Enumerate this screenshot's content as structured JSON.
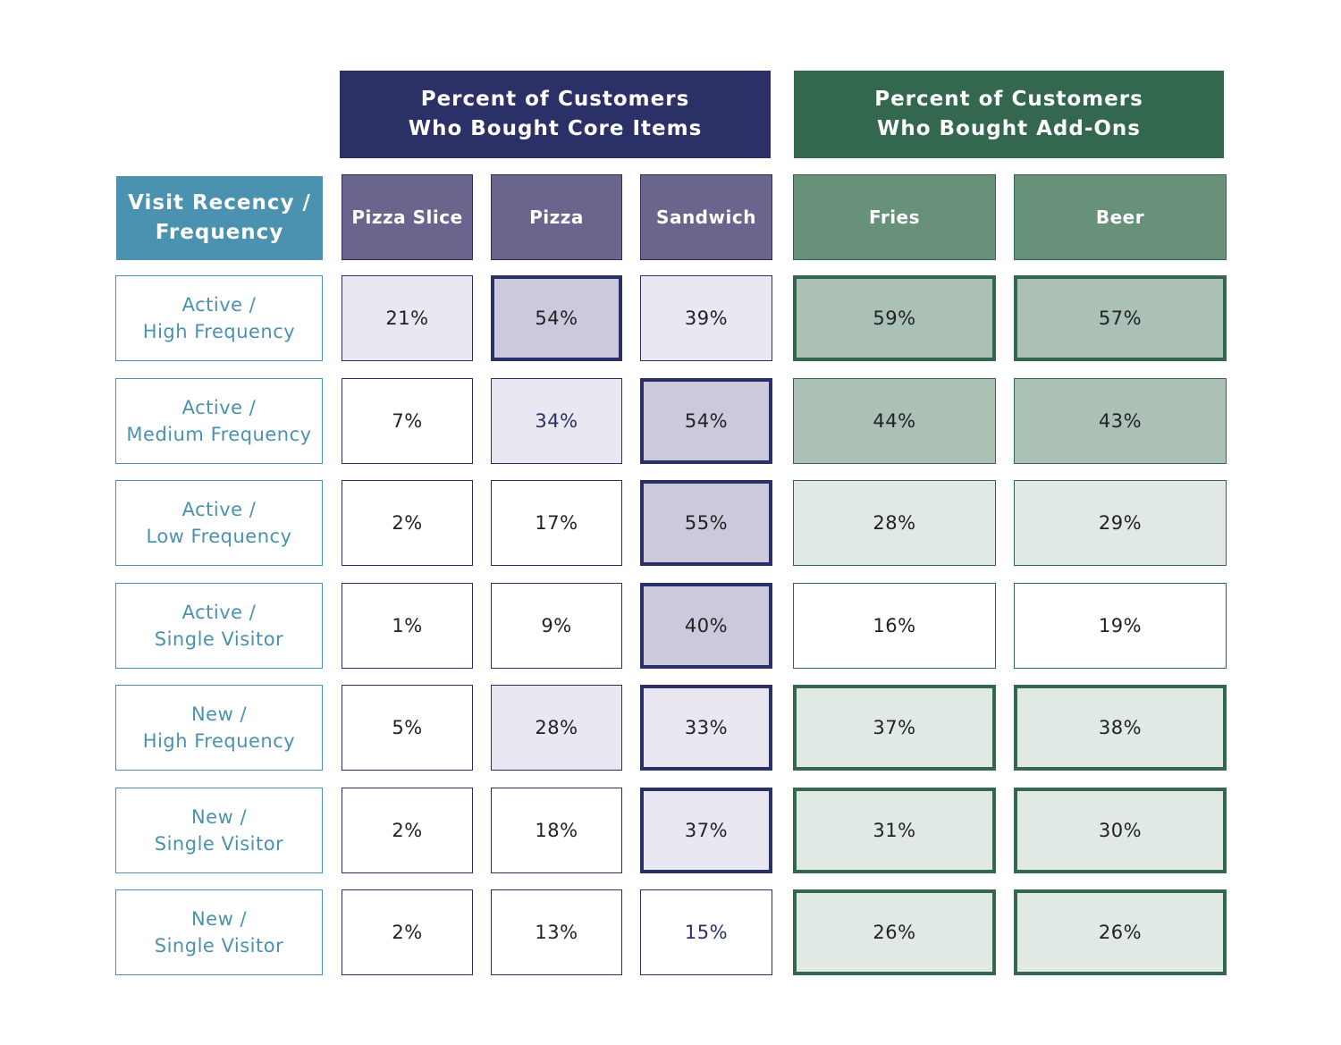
{
  "colors": {
    "core_header": "#2b3066",
    "core_column_header": "#6a658d",
    "addon_header": "#33684f",
    "addon_column_header": "#679179",
    "row_header": "#4a92b0",
    "core_high": "#ccc9dc",
    "core_mid": "#e9e7f2",
    "addon_high": "#abc1b6",
    "addon_mid": "#e1e9e5",
    "highlight_border_core": "#2b3066",
    "highlight_border_addon": "#33684f"
  },
  "groups": [
    {
      "line1": "Percent of Customers",
      "line2": "Who Bought Core Items"
    },
    {
      "line1": "Percent of Customers",
      "line2": "Who Bought Add-Ons"
    }
  ],
  "row_header": {
    "line1": "Visit Recency /",
    "line2": "Frequency"
  },
  "chart_data": {
    "type": "table",
    "columns": [
      "Pizza Slice",
      "Pizza",
      "Sandwich",
      "Fries",
      "Beer"
    ],
    "rows": [
      {
        "line1": "Active /",
        "line2": "High Frequency"
      },
      {
        "line1": "Active /",
        "line2": "Medium Frequency"
      },
      {
        "line1": "Active /",
        "line2": "Low Frequency"
      },
      {
        "line1": "Active /",
        "line2": "Single Visitor"
      },
      {
        "line1": "New /",
        "line2": "High Frequency"
      },
      {
        "line1": "New /",
        "line2": "Single Visitor"
      },
      {
        "line1": "New /",
        "line2": "Single Visitor"
      }
    ],
    "values": [
      [
        "21%",
        "54%",
        "39%",
        "59%",
        "57%"
      ],
      [
        "7%",
        "34%",
        "54%",
        "44%",
        "43%"
      ],
      [
        "2%",
        "17%",
        "55%",
        "28%",
        "29%"
      ],
      [
        "1%",
        "9%",
        "40%",
        "16%",
        "19%"
      ],
      [
        "5%",
        "28%",
        "33%",
        "37%",
        "38%"
      ],
      [
        "2%",
        "18%",
        "37%",
        "31%",
        "30%"
      ],
      [
        "2%",
        "13%",
        "15%",
        "26%",
        "26%"
      ]
    ],
    "shading": [
      [
        "mid",
        "high",
        "mid",
        "high",
        "high"
      ],
      [
        "none",
        "mid",
        "high",
        "high",
        "high"
      ],
      [
        "none",
        "none",
        "high",
        "mid",
        "mid"
      ],
      [
        "none",
        "none",
        "high",
        "none",
        "none"
      ],
      [
        "none",
        "mid",
        "mid",
        "mid",
        "mid"
      ],
      [
        "none",
        "none",
        "mid",
        "mid",
        "mid"
      ],
      [
        "none",
        "none",
        "none",
        "mid",
        "mid"
      ]
    ],
    "highlighted": [
      [
        false,
        true,
        false,
        true,
        true
      ],
      [
        false,
        false,
        true,
        false,
        false
      ],
      [
        false,
        false,
        true,
        false,
        false
      ],
      [
        false,
        false,
        true,
        false,
        false
      ],
      [
        false,
        false,
        true,
        true,
        true
      ],
      [
        false,
        false,
        true,
        true,
        true
      ],
      [
        false,
        false,
        false,
        true,
        true
      ]
    ],
    "accent_text": [
      [
        false,
        false,
        false,
        false,
        false
      ],
      [
        false,
        true,
        false,
        false,
        false
      ],
      [
        false,
        false,
        false,
        false,
        false
      ],
      [
        false,
        false,
        false,
        false,
        false
      ],
      [
        false,
        false,
        false,
        false,
        false
      ],
      [
        false,
        false,
        false,
        false,
        false
      ],
      [
        false,
        false,
        true,
        false,
        false
      ]
    ]
  }
}
